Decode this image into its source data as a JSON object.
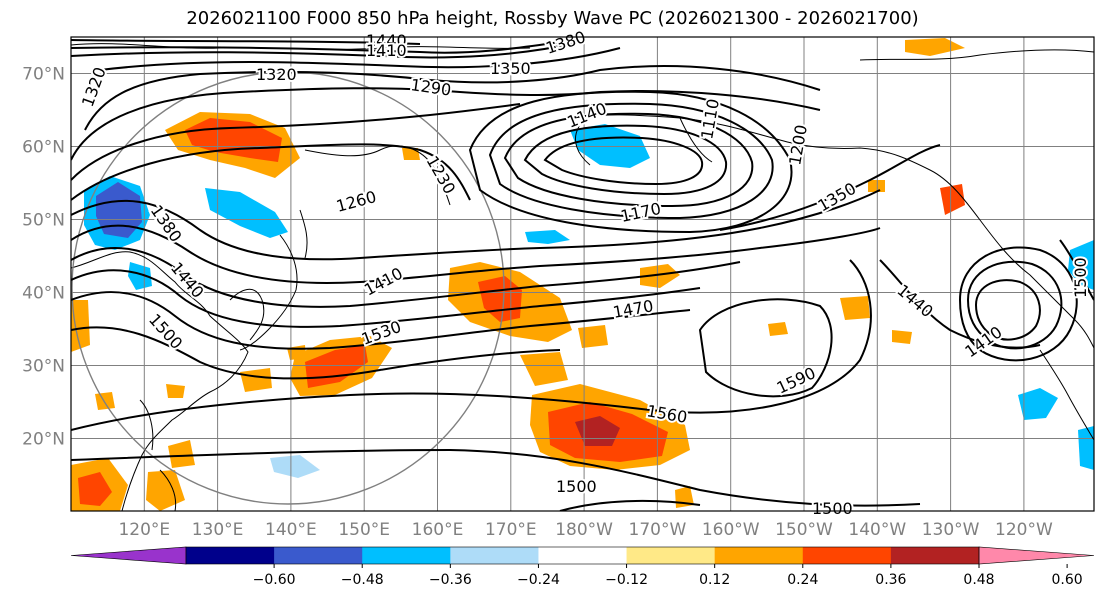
{
  "title": "2026021100 F000 850 hPa height, Rossby Wave PC (2026021300 - 2026021700)",
  "lat_labels": [
    "70°N",
    "60°N",
    "50°N",
    "40°N",
    "30°N",
    "20°N"
  ],
  "lon_labels": [
    "120°E",
    "130°E",
    "140°E",
    "150°E",
    "160°E",
    "170°E",
    "180°W",
    "170°W",
    "160°W",
    "150°W",
    "140°W",
    "130°W",
    "120°W"
  ],
  "contour_labels": [
    "1440",
    "1410",
    "1380",
    "1350",
    "1320",
    "1320",
    "1290",
    "1140",
    "1110",
    "1200",
    "1260",
    "1230",
    "1170",
    "1350",
    "1380",
    "1440",
    "1410",
    "1500",
    "1470",
    "1530",
    "1440",
    "1410",
    "1500",
    "1590",
    "1560",
    "1500",
    "1500"
  ],
  "colorbar": {
    "ticks": [
      "−0.60",
      "−0.48",
      "−0.36",
      "−0.24",
      "−0.12",
      "0.12",
      "0.24",
      "0.36",
      "0.48",
      "0.60"
    ],
    "colors": [
      "#9933cc",
      "#00008b",
      "#3a5acd",
      "#00bfff",
      "#aedcf8",
      "#ffffff",
      "#ffe987",
      "#ffa500",
      "#ff4500",
      "#b22222",
      "#ff88aa"
    ]
  },
  "colors": {
    "contour": "#000000",
    "grid": "#808080",
    "coast": "#000000"
  }
}
